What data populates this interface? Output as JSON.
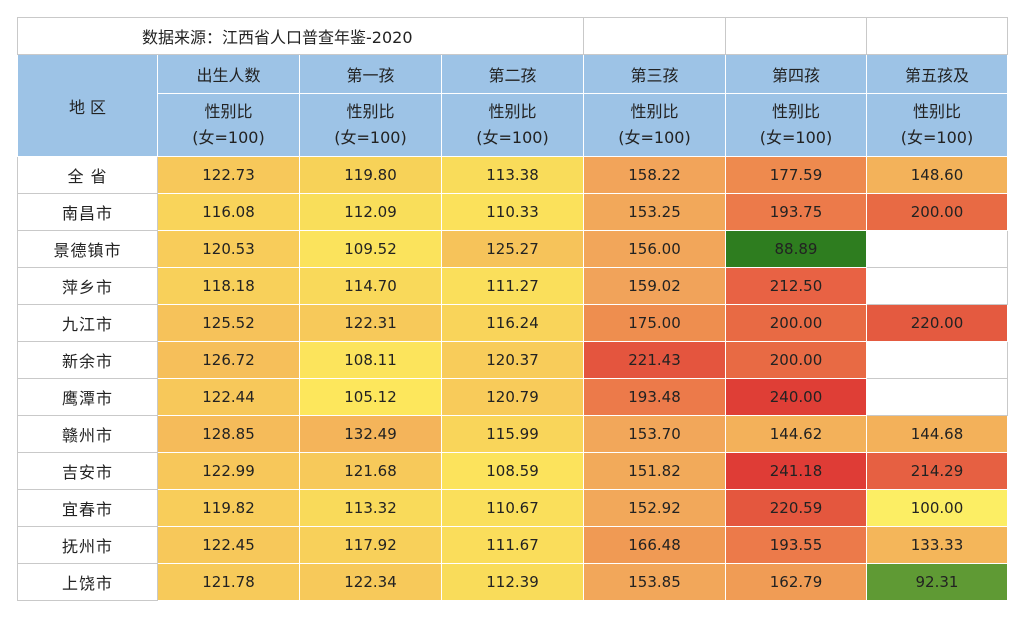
{
  "source": "数据来源：江西省人口普查年鉴-2020",
  "region_header": "地 区",
  "columns": [
    {
      "label": "出生人数",
      "metric": "性别比",
      "unit": "(女=100)"
    },
    {
      "label": "第一孩",
      "metric": "性别比",
      "unit": "(女=100)"
    },
    {
      "label": "第二孩",
      "metric": "性别比",
      "unit": "(女=100)"
    },
    {
      "label": "第三孩",
      "metric": "性别比",
      "unit": "(女=100)"
    },
    {
      "label": "第四孩",
      "metric": "性别比",
      "unit": "(女=100)"
    },
    {
      "label": "第五孩及",
      "metric": "性别比",
      "unit": "(女=100)"
    }
  ],
  "rows": [
    {
      "region": "全 省",
      "values": [
        "122.73",
        "119.80",
        "113.38",
        "158.22",
        "177.59",
        "148.60"
      ],
      "colors": [
        "#f7c85a",
        "#f7d258",
        "#f9dc5a",
        "#f2a45a",
        "#ee8a4e",
        "#f3b25a"
      ]
    },
    {
      "region": "南昌市",
      "values": [
        "116.08",
        "112.09",
        "110.33",
        "153.25",
        "193.75",
        "200.00"
      ],
      "colors": [
        "#f9d45a",
        "#f9de5a",
        "#fbe15b",
        "#f2a85a",
        "#ec7a4a",
        "#e86a44"
      ]
    },
    {
      "region": "景德镇市",
      "values": [
        "120.53",
        "109.52",
        "125.27",
        "156.00",
        "88.89",
        ""
      ],
      "colors": [
        "#f8cc5a",
        "#fbe35c",
        "#f6c35a",
        "#f2a65a",
        "#2e7d1f",
        "#ffffff"
      ]
    },
    {
      "region": "萍乡市",
      "values": [
        "118.18",
        "114.70",
        "111.27",
        "159.02",
        "212.50",
        ""
      ],
      "colors": [
        "#f8d05a",
        "#f9d95a",
        "#fadf5b",
        "#f1a35a",
        "#e86244",
        "#ffffff"
      ]
    },
    {
      "region": "九江市",
      "values": [
        "125.52",
        "122.31",
        "116.24",
        "175.00",
        "200.00",
        "220.00"
      ],
      "colors": [
        "#f6c25a",
        "#f7c95a",
        "#f9d45a",
        "#ee8e4f",
        "#e86a44",
        "#e45a40"
      ]
    },
    {
      "region": "新余市",
      "values": [
        "126.72",
        "108.11",
        "120.37",
        "221.43",
        "200.00",
        ""
      ],
      "colors": [
        "#f6bf5a",
        "#fce45c",
        "#f8cc5a",
        "#e4553e",
        "#e86a44",
        "#ffffff"
      ]
    },
    {
      "region": "鹰潭市",
      "values": [
        "122.44",
        "105.12",
        "120.79",
        "193.48",
        "240.00",
        ""
      ],
      "colors": [
        "#f7c85a",
        "#fde75c",
        "#f8cb5a",
        "#ec7a4a",
        "#df3e36",
        "#ffffff"
      ]
    },
    {
      "region": "赣州市",
      "values": [
        "128.85",
        "132.49",
        "115.99",
        "153.70",
        "144.62",
        "144.68"
      ],
      "colors": [
        "#f5bb5a",
        "#f4b45a",
        "#f9d55a",
        "#f2a75a",
        "#f3b15a",
        "#f3b15a"
      ]
    },
    {
      "region": "吉安市",
      "values": [
        "122.99",
        "121.68",
        "108.59",
        "151.82",
        "241.18",
        "214.29"
      ],
      "colors": [
        "#f7c75a",
        "#f7c95a",
        "#fce35c",
        "#f2aa5a",
        "#df3c36",
        "#e66042"
      ]
    },
    {
      "region": "宜春市",
      "values": [
        "119.82",
        "113.32",
        "110.67",
        "152.92",
        "220.59",
        "100.00"
      ],
      "colors": [
        "#f8cd5a",
        "#f9da5a",
        "#fadf5b",
        "#f2a85a",
        "#e4573e",
        "#fcee64"
      ]
    },
    {
      "region": "抚州市",
      "values": [
        "122.45",
        "117.92",
        "111.67",
        "166.48",
        "193.55",
        "133.33"
      ],
      "colors": [
        "#f7c85a",
        "#f8d05a",
        "#fadd5b",
        "#f09a54",
        "#ec7a4a",
        "#f4b65a"
      ]
    },
    {
      "region": "上饶市",
      "values": [
        "121.78",
        "122.34",
        "112.39",
        "153.85",
        "162.79",
        "92.31"
      ],
      "colors": [
        "#f7ca5a",
        "#f7c95a",
        "#f9dc5a",
        "#f2a75a",
        "#f09c55",
        "#5f9a34"
      ]
    }
  ]
}
